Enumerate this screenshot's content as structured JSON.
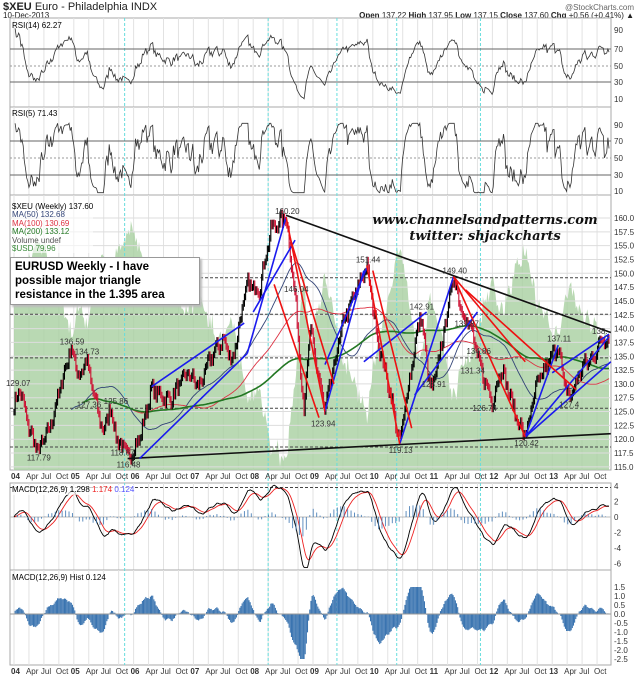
{
  "header": {
    "symbol": "$XEU",
    "name": "Euro - Philadelphia INDX",
    "date": "10-Dec-2013",
    "copyright": "@StockCharts.com",
    "open_label": "Open",
    "open": "137.22",
    "high_label": "High",
    "high": "137.95",
    "low_label": "Low",
    "low": "137.15",
    "close_label": "Close",
    "close": "137.60",
    "chg_label": "Chg",
    "chg": "+0.56 (+0.41%) ▲"
  },
  "colors": {
    "price_up": "#000000",
    "price_down": "#cc1133",
    "ma50": "#334477",
    "ma100": "#dd3344",
    "ma200": "#227722",
    "usd_area": "#a8d0a0",
    "trend_blue": "#1a1aee",
    "trend_red": "#ee1111",
    "trend_black": "#111111",
    "macd_signal": "#ee2222",
    "hist": "#3a74b0",
    "cycle": "#66dddd"
  },
  "annotation_text": "EURUSD Weekly - I have possible major triangle resistance in the 1.395 area",
  "watermark": {
    "line1": "www.channelsandpatterns.com",
    "line2": "twitter: shjackcharts"
  },
  "legend": {
    "rsi14": "RSI(14) 62.27",
    "rsi5": "RSI(5) 71.43",
    "price": "$XEU (Weekly) 137.60",
    "ma50": "MA(50) 132.68",
    "ma100": "MA(100) 130.69",
    "ma200": "MA(200) 133.12",
    "volume": "Volume undef",
    "usd": "$USD 79.96",
    "macd": "MACD(12,26,9) 1.298",
    "macd_signal": "1.174",
    "macd_hist": "0.124",
    "hist": "MACD(12,26,9) Hist 0.124"
  },
  "chart_data": {
    "type": "line",
    "x_range": [
      2004.0,
      2013.95
    ],
    "x_tick_labels": [
      "04",
      "Apr",
      "Jul",
      "Oct",
      "05",
      "Apr",
      "Jul",
      "Oct",
      "06",
      "Apr",
      "Jul",
      "Oct",
      "07",
      "Apr",
      "Jul",
      "Oct",
      "08",
      "Apr",
      "Jul",
      "Oct",
      "09",
      "Apr",
      "Jul",
      "Oct",
      "10",
      "Apr",
      "Jul",
      "Oct",
      "11",
      "Apr",
      "Jul",
      "Oct",
      "12",
      "Apr",
      "Jul",
      "Oct",
      "13",
      "Apr",
      "Jul",
      "Oct"
    ],
    "price_ylim": [
      115,
      160
    ],
    "price_ticks": [
      "160.0",
      "157.5",
      "155.0",
      "152.5",
      "150.0",
      "147.5",
      "145.0",
      "142.5",
      "140.0",
      "137.5",
      "135.0",
      "132.5",
      "130.0",
      "127.5",
      "125.0",
      "122.5",
      "120.0",
      "117.5",
      "115.0"
    ],
    "rsi_ticks": [
      "90",
      "70",
      "50",
      "30",
      "10"
    ],
    "macd_ticks": [
      "4",
      "2",
      "0",
      "-2",
      "-4",
      "-6"
    ],
    "hist_ticks": [
      "1.5",
      "1.0",
      "0.5",
      "0.0",
      "-0.5",
      "-1.0",
      "-1.5",
      "-2.0",
      "-2.5"
    ],
    "price_keypoints": [
      [
        2004.0,
        126
      ],
      [
        2004.1,
        129.07
      ],
      [
        2004.25,
        122
      ],
      [
        2004.4,
        117.79
      ],
      [
        2004.6,
        122
      ],
      [
        2004.95,
        136.59
      ],
      [
        2005.1,
        131
      ],
      [
        2005.2,
        134.73
      ],
      [
        2005.35,
        127.36
      ],
      [
        2005.5,
        121
      ],
      [
        2005.6,
        125.86
      ],
      [
        2005.75,
        119
      ],
      [
        2005.85,
        118.67
      ],
      [
        2005.9,
        116.48
      ],
      [
        2006.1,
        120
      ],
      [
        2006.3,
        129
      ],
      [
        2006.6,
        127
      ],
      [
        2006.9,
        132
      ],
      [
        2007.1,
        129.5
      ],
      [
        2007.3,
        135
      ],
      [
        2007.5,
        138
      ],
      [
        2007.65,
        134
      ],
      [
        2007.9,
        148
      ],
      [
        2008.1,
        147
      ],
      [
        2008.3,
        158
      ],
      [
        2008.55,
        160.2
      ],
      [
        2008.7,
        146.04
      ],
      [
        2008.85,
        125
      ],
      [
        2008.95,
        140
      ],
      [
        2009.2,
        125
      ],
      [
        2009.5,
        141
      ],
      [
        2009.9,
        151.44
      ],
      [
        2010.1,
        137
      ],
      [
        2010.3,
        128
      ],
      [
        2010.45,
        119.13
      ],
      [
        2010.6,
        130
      ],
      [
        2010.8,
        142.91
      ],
      [
        2010.95,
        130
      ],
      [
        2011.0,
        128.91
      ],
      [
        2011.15,
        137
      ],
      [
        2011.35,
        149.4
      ],
      [
        2011.5,
        143
      ],
      [
        2011.65,
        139.87
      ],
      [
        2011.75,
        134.86
      ],
      [
        2011.85,
        131.34
      ],
      [
        2012.0,
        126.74
      ],
      [
        2012.15,
        133
      ],
      [
        2012.4,
        124
      ],
      [
        2012.55,
        120.42
      ],
      [
        2012.75,
        130
      ],
      [
        2013.1,
        137.11
      ],
      [
        2013.2,
        130
      ],
      [
        2013.3,
        127.4
      ],
      [
        2013.5,
        133
      ],
      [
        2013.7,
        135
      ],
      [
        2013.85,
        138.5
      ],
      [
        2013.95,
        137.6
      ]
    ],
    "point_labels": [
      [
        2004.05,
        129.07,
        "129.07"
      ],
      [
        2004.4,
        117.79,
        "117.79"
      ],
      [
        2004.95,
        136.59,
        "136.59"
      ],
      [
        2005.2,
        134.73,
        "134.73"
      ],
      [
        2005.35,
        127.36,
        "127.36"
      ],
      [
        2005.6,
        125.86,
        "125.86"
      ],
      [
        2005.8,
        118.67,
        "118.67"
      ],
      [
        2005.9,
        116.48,
        "116.48"
      ],
      [
        2008.55,
        160.2,
        "160.20"
      ],
      [
        2008.7,
        146.04,
        "146.04"
      ],
      [
        2009.15,
        123.94,
        "123.94"
      ],
      [
        2009.9,
        151.44,
        "151.44"
      ],
      [
        2010.45,
        119.13,
        "119.13"
      ],
      [
        2010.8,
        142.91,
        "142.91"
      ],
      [
        2011.0,
        128.91,
        "128.91"
      ],
      [
        2011.35,
        149.4,
        "149.40"
      ],
      [
        2011.55,
        139.87,
        "139.87"
      ],
      [
        2011.75,
        134.86,
        "134.86"
      ],
      [
        2011.65,
        131.34,
        "131.34"
      ],
      [
        2011.85,
        126.74,
        "126.74"
      ],
      [
        2012.55,
        120.42,
        "120.42"
      ],
      [
        2013.1,
        137.11,
        "137.11"
      ],
      [
        2013.3,
        127.4,
        "127.4"
      ],
      [
        2013.85,
        138.5,
        "138."
      ]
    ],
    "horizontal_levels": [
      149.2,
      142.6,
      134.7,
      125.6,
      118.6
    ],
    "cycle_lines": [
      2005.85,
      2008.25,
      2009.4,
      2010.4,
      2011.8
    ],
    "trendlines": [
      {
        "color": "black",
        "from": [
          2008.55,
          160.5
        ],
        "to": [
          2013.98,
          139.3
        ]
      },
      {
        "color": "black",
        "from": [
          2005.9,
          116.5
        ],
        "to": [
          2013.98,
          121
        ]
      },
      {
        "color": "blue",
        "from": [
          2006.3,
          129.5
        ],
        "to": [
          2007.85,
          141
        ]
      },
      {
        "color": "blue",
        "from": [
          2006.1,
          116.5
        ],
        "to": [
          2007.9,
          135.5
        ]
      },
      {
        "color": "blue",
        "from": [
          2007.9,
          135.5
        ],
        "to": [
          2008.55,
          160.2
        ]
      },
      {
        "color": "blue",
        "from": [
          2008.0,
          143
        ],
        "to": [
          2008.7,
          156
        ]
      },
      {
        "color": "blue",
        "from": [
          2009.2,
          125
        ],
        "to": [
          2009.85,
          150.5
        ]
      },
      {
        "color": "blue",
        "from": [
          2009.2,
          133.5
        ],
        "to": [
          2009.9,
          151
        ]
      },
      {
        "color": "blue",
        "from": [
          2010.45,
          119.13
        ],
        "to": [
          2011.35,
          149.4
        ]
      },
      {
        "color": "blue",
        "from": [
          2009.85,
          134
        ],
        "to": [
          2010.9,
          143
        ]
      },
      {
        "color": "blue",
        "from": [
          2010.7,
          128
        ],
        "to": [
          2011.75,
          143
        ]
      },
      {
        "color": "blue",
        "from": [
          2012.55,
          120.42
        ],
        "to": [
          2013.1,
          137
        ]
      },
      {
        "color": "blue",
        "from": [
          2012.55,
          120.42
        ],
        "to": [
          2013.98,
          134
        ]
      },
      {
        "color": "blue",
        "from": [
          2012.55,
          120.42
        ],
        "to": [
          2013.95,
          138.5
        ]
      },
      {
        "color": "blue",
        "from": [
          2013.0,
          132
        ],
        "to": [
          2013.95,
          139
        ]
      },
      {
        "color": "red",
        "from": [
          2008.55,
          160.2
        ],
        "to": [
          2009.2,
          125
        ]
      },
      {
        "color": "red",
        "from": [
          2008.6,
          157
        ],
        "to": [
          2009.35,
          130
        ]
      },
      {
        "color": "red",
        "from": [
          2009.9,
          151.44
        ],
        "to": [
          2010.45,
          119.13
        ]
      },
      {
        "color": "red",
        "from": [
          2010.0,
          150.5
        ],
        "to": [
          2010.65,
          122
        ]
      },
      {
        "color": "red",
        "from": [
          2011.35,
          149.4
        ],
        "to": [
          2012.55,
          120.42
        ]
      },
      {
        "color": "red",
        "from": [
          2011.35,
          149.4
        ],
        "to": [
          2012.55,
          134
        ]
      },
      {
        "color": "red",
        "from": [
          2011.55,
          147
        ],
        "to": [
          2013.4,
          129
        ]
      },
      {
        "color": "red",
        "from": [
          2008.35,
          148
        ],
        "to": [
          2009.1,
          123.9
        ]
      }
    ]
  }
}
